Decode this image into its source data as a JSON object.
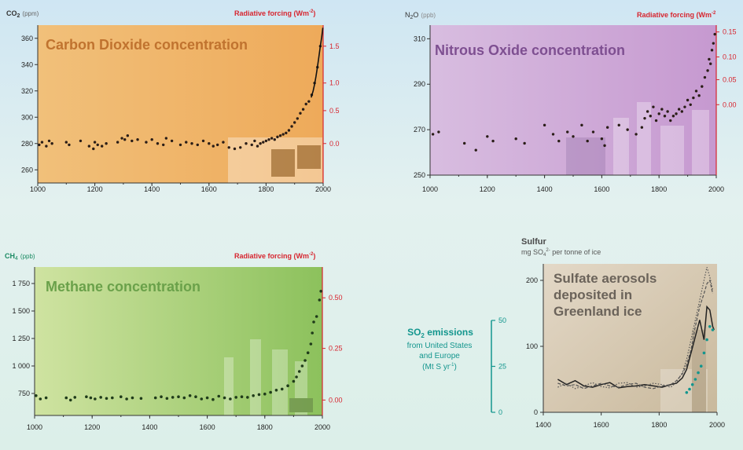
{
  "colors": {
    "co2_bg_start": "#f1c07a",
    "co2_bg_end": "#eeaa5a",
    "n2o_bg_start": "#d8bde0",
    "n2o_bg_end": "#c699d0",
    "ch4_bg_start": "#cfe3a1",
    "ch4_bg_end": "#8cc15c",
    "sulf_bg_start": "#e3d8c7",
    "sulf_bg_end": "#c9b99c",
    "forcing_axis": "#d7252f",
    "co2_title": "#c0732f",
    "n2o_title": "#7e4f91",
    "ch4_title": "#6aa14a",
    "ch4_label": "#1b8a63",
    "so2": "#13968e",
    "sulf_title": "#6b635a",
    "dots": "#2a1d17",
    "axis_text": "#333333"
  },
  "chart_data": [
    {
      "id": "co2",
      "type": "scatter",
      "title": "Carbon Dioxide concentration",
      "ylabel_main": "CO",
      "ylabel_sub": "2",
      "ylabel_unit": "(ppm)",
      "ylabel_right": "Radiative forcing (Wm",
      "ylabel_right_sup": "-2",
      "ylabel_right_end": ")",
      "xlim": [
        1000,
        2000
      ],
      "ylim": [
        250,
        370
      ],
      "x_ticks": [
        "1000",
        "1200",
        "1400",
        "1600",
        "1800",
        "2000"
      ],
      "y_ticks": [
        "260",
        "280",
        "300",
        "320",
        "340",
        "360"
      ],
      "right_ticks": [
        "1.5",
        "1.0",
        "0.5",
        "0.0"
      ],
      "right_tick_values": [
        354,
        326,
        305,
        280
      ],
      "points": [
        [
          1005,
          279
        ],
        [
          1015,
          281
        ],
        [
          1030,
          278
        ],
        [
          1040,
          282
        ],
        [
          1050,
          280
        ],
        [
          1100,
          281
        ],
        [
          1110,
          279
        ],
        [
          1150,
          282
        ],
        [
          1180,
          278
        ],
        [
          1195,
          276
        ],
        [
          1200,
          281
        ],
        [
          1210,
          279
        ],
        [
          1225,
          278
        ],
        [
          1240,
          280
        ],
        [
          1280,
          281
        ],
        [
          1295,
          284
        ],
        [
          1305,
          283
        ],
        [
          1315,
          286
        ],
        [
          1330,
          282
        ],
        [
          1350,
          283
        ],
        [
          1380,
          281
        ],
        [
          1400,
          283
        ],
        [
          1420,
          280
        ],
        [
          1440,
          279
        ],
        [
          1450,
          284
        ],
        [
          1470,
          282
        ],
        [
          1500,
          279
        ],
        [
          1520,
          281
        ],
        [
          1540,
          280
        ],
        [
          1560,
          279
        ],
        [
          1580,
          282
        ],
        [
          1600,
          280
        ],
        [
          1615,
          278
        ],
        [
          1630,
          279
        ],
        [
          1650,
          281
        ],
        [
          1670,
          277
        ],
        [
          1690,
          276
        ],
        [
          1710,
          277
        ],
        [
          1730,
          280
        ],
        [
          1750,
          279
        ],
        [
          1760,
          282
        ],
        [
          1770,
          278
        ],
        [
          1780,
          280
        ],
        [
          1790,
          281
        ],
        [
          1800,
          282
        ],
        [
          1810,
          283
        ],
        [
          1820,
          284
        ],
        [
          1830,
          283
        ],
        [
          1840,
          285
        ],
        [
          1850,
          286
        ],
        [
          1860,
          287
        ],
        [
          1870,
          288
        ],
        [
          1880,
          290
        ],
        [
          1890,
          293
        ],
        [
          1900,
          296
        ],
        [
          1910,
          299
        ],
        [
          1920,
          303
        ],
        [
          1930,
          306
        ],
        [
          1940,
          310
        ],
        [
          1950,
          312
        ],
        [
          1960,
          317
        ],
        [
          1970,
          326
        ],
        [
          1980,
          338
        ],
        [
          1990,
          354
        ]
      ],
      "line": [
        [
          1958,
          315
        ],
        [
          1965,
          320
        ],
        [
          1970,
          325
        ],
        [
          1975,
          331
        ],
        [
          1980,
          338
        ],
        [
          1985,
          346
        ],
        [
          1990,
          354
        ],
        [
          1995,
          361
        ],
        [
          1999,
          368
        ]
      ]
    },
    {
      "id": "n2o",
      "type": "scatter",
      "title": "Nitrous Oxide concentration",
      "ylabel_main": "N",
      "ylabel_sub": "2",
      "ylabel_main2": "O",
      "ylabel_unit": "(ppb)",
      "ylabel_right": "Radiative forcing (Wm",
      "ylabel_right_sup": "-2",
      "xlim": [
        1000,
        2000
      ],
      "ylim": [
        250,
        316
      ],
      "x_ticks": [
        "1000",
        "1200",
        "1400",
        "1600",
        "1800",
        "2000"
      ],
      "y_ticks": [
        "250",
        "270",
        "290",
        "310"
      ],
      "right_ticks": [
        "0.15",
        "0.10",
        "0.05",
        "0.00"
      ],
      "right_tick_values": [
        313,
        302,
        292,
        281
      ],
      "points": [
        [
          1010,
          268
        ],
        [
          1030,
          269
        ],
        [
          1120,
          264
        ],
        [
          1160,
          261
        ],
        [
          1200,
          267
        ],
        [
          1220,
          265
        ],
        [
          1300,
          266
        ],
        [
          1330,
          264
        ],
        [
          1400,
          272
        ],
        [
          1430,
          268
        ],
        [
          1450,
          265
        ],
        [
          1480,
          269
        ],
        [
          1500,
          267
        ],
        [
          1530,
          272
        ],
        [
          1550,
          265
        ],
        [
          1570,
          269
        ],
        [
          1600,
          266
        ],
        [
          1610,
          263
        ],
        [
          1620,
          271
        ],
        [
          1660,
          272
        ],
        [
          1690,
          270
        ],
        [
          1720,
          268
        ],
        [
          1740,
          271
        ],
        [
          1750,
          275
        ],
        [
          1760,
          278
        ],
        [
          1770,
          276
        ],
        [
          1780,
          280
        ],
        [
          1790,
          274
        ],
        [
          1800,
          277
        ],
        [
          1810,
          279
        ],
        [
          1820,
          276
        ],
        [
          1830,
          278
        ],
        [
          1840,
          274
        ],
        [
          1850,
          276
        ],
        [
          1860,
          277
        ],
        [
          1870,
          279
        ],
        [
          1880,
          278
        ],
        [
          1890,
          280
        ],
        [
          1900,
          283
        ],
        [
          1910,
          281
        ],
        [
          1920,
          284
        ],
        [
          1930,
          287
        ],
        [
          1940,
          285
        ],
        [
          1950,
          289
        ],
        [
          1960,
          293
        ],
        [
          1970,
          296
        ],
        [
          1975,
          301
        ],
        [
          1980,
          299
        ],
        [
          1985,
          305
        ],
        [
          1990,
          308
        ],
        [
          1995,
          312
        ]
      ]
    },
    {
      "id": "ch4",
      "type": "scatter",
      "title": "Methane concentration",
      "ylabel_main": "CH",
      "ylabel_sub": "4",
      "ylabel_unit": "(ppb)",
      "ylabel_right": "Radiative forcing (Wm",
      "ylabel_right_sup": "-2",
      "ylabel_right_end": ")",
      "xlim": [
        1000,
        2000
      ],
      "ylim": [
        550,
        1900
      ],
      "x_ticks": [
        "1000",
        "1200",
        "1400",
        "1600",
        "1800",
        "2000"
      ],
      "y_ticks": [
        "750",
        "1 000",
        "1 250",
        "1 500",
        "1 750"
      ],
      "y_tick_values": [
        750,
        1000,
        1250,
        1500,
        1750
      ],
      "right_ticks": [
        "0.50",
        "0.25",
        "0.00"
      ],
      "right_tick_values": [
        1620,
        1160,
        690
      ],
      "points": [
        [
          1005,
          730
        ],
        [
          1020,
          700
        ],
        [
          1040,
          710
        ],
        [
          1110,
          710
        ],
        [
          1125,
          690
        ],
        [
          1140,
          715
        ],
        [
          1180,
          720
        ],
        [
          1195,
          710
        ],
        [
          1210,
          700
        ],
        [
          1230,
          715
        ],
        [
          1250,
          705
        ],
        [
          1270,
          710
        ],
        [
          1300,
          720
        ],
        [
          1320,
          700
        ],
        [
          1340,
          710
        ],
        [
          1370,
          705
        ],
        [
          1420,
          710
        ],
        [
          1440,
          720
        ],
        [
          1460,
          705
        ],
        [
          1480,
          715
        ],
        [
          1500,
          720
        ],
        [
          1520,
          710
        ],
        [
          1540,
          730
        ],
        [
          1560,
          720
        ],
        [
          1580,
          700
        ],
        [
          1600,
          710
        ],
        [
          1620,
          695
        ],
        [
          1640,
          725
        ],
        [
          1660,
          710
        ],
        [
          1680,
          700
        ],
        [
          1700,
          715
        ],
        [
          1720,
          720
        ],
        [
          1740,
          715
        ],
        [
          1760,
          730
        ],
        [
          1780,
          740
        ],
        [
          1800,
          745
        ],
        [
          1820,
          760
        ],
        [
          1840,
          780
        ],
        [
          1860,
          790
        ],
        [
          1880,
          820
        ],
        [
          1900,
          860
        ],
        [
          1910,
          900
        ],
        [
          1920,
          950
        ],
        [
          1930,
          1000
        ],
        [
          1940,
          1050
        ],
        [
          1950,
          1120
        ],
        [
          1960,
          1200
        ],
        [
          1965,
          1300
        ],
        [
          1970,
          1400
        ],
        [
          1980,
          1450
        ],
        [
          1990,
          1600
        ],
        [
          1995,
          1680
        ]
      ]
    },
    {
      "id": "sulfate",
      "type": "line",
      "title_lines": [
        "Sulfate aerosols",
        "deposited in",
        "Greenland ice"
      ],
      "top_label": "Sulfur",
      "top_unit_pre": "mg SO",
      "top_unit_sub": "4",
      "top_unit_sup": "2-",
      "top_unit_post": " per tonne of ice",
      "xlim": [
        1400,
        2000
      ],
      "ylim": [
        0,
        225
      ],
      "x_ticks": [
        "1400",
        "1600",
        "1800",
        "2000"
      ],
      "y_ticks": [
        "0",
        "100",
        "200"
      ],
      "so2_label": [
        "SO",
        "2",
        " emissions"
      ],
      "so2_text": [
        "from United States",
        "and Europe",
        "(Mt S yr",
        "-1",
        ")"
      ],
      "so2_ticks": [
        "0",
        "25",
        "50"
      ],
      "series": [
        {
          "style": "solid",
          "points": [
            [
              1450,
              50
            ],
            [
              1480,
              42
            ],
            [
              1510,
              48
            ],
            [
              1540,
              40
            ],
            [
              1570,
              38
            ],
            [
              1600,
              42
            ],
            [
              1630,
              45
            ],
            [
              1660,
              37
            ],
            [
              1690,
              39
            ],
            [
              1720,
              40
            ],
            [
              1750,
              42
            ],
            [
              1780,
              40
            ],
            [
              1810,
              38
            ],
            [
              1840,
              42
            ],
            [
              1860,
              44
            ],
            [
              1880,
              52
            ],
            [
              1895,
              65
            ],
            [
              1910,
              90
            ],
            [
              1925,
              115
            ],
            [
              1940,
              140
            ],
            [
              1955,
              110
            ],
            [
              1965,
              160
            ],
            [
              1975,
              155
            ],
            [
              1985,
              130
            ],
            [
              1990,
              125
            ]
          ]
        },
        {
          "style": "dotted",
          "points": [
            [
              1450,
              38
            ],
            [
              1480,
              44
            ],
            [
              1510,
              36
            ],
            [
              1540,
              40
            ],
            [
              1570,
              45
            ],
            [
              1600,
              39
            ],
            [
              1630,
              37
            ],
            [
              1660,
              44
            ],
            [
              1690,
              45
            ],
            [
              1720,
              38
            ],
            [
              1750,
              40
            ],
            [
              1780,
              44
            ],
            [
              1810,
              42
            ],
            [
              1840,
              38
            ],
            [
              1860,
              46
            ],
            [
              1880,
              60
            ],
            [
              1895,
              80
            ],
            [
              1910,
              110
            ],
            [
              1925,
              140
            ],
            [
              1940,
              170
            ],
            [
              1955,
              200
            ],
            [
              1965,
              220
            ],
            [
              1975,
              205
            ],
            [
              1985,
              185
            ]
          ]
        },
        {
          "style": "dash",
          "points": [
            [
              1450,
              44
            ],
            [
              1480,
              40
            ],
            [
              1510,
              42
            ],
            [
              1540,
              36
            ],
            [
              1570,
              40
            ],
            [
              1600,
              44
            ],
            [
              1630,
              40
            ],
            [
              1660,
              38
            ],
            [
              1690,
              42
            ],
            [
              1720,
              44
            ],
            [
              1750,
              38
            ],
            [
              1780,
              36
            ],
            [
              1810,
              40
            ],
            [
              1840,
              42
            ],
            [
              1860,
              48
            ],
            [
              1880,
              58
            ],
            [
              1895,
              72
            ],
            [
              1910,
              95
            ],
            [
              1925,
              130
            ],
            [
              1940,
              160
            ],
            [
              1955,
              180
            ],
            [
              1965,
              195
            ],
            [
              1975,
              200
            ],
            [
              1985,
              180
            ]
          ]
        }
      ],
      "so2_points": [
        [
          1895,
          30
        ],
        [
          1905,
          35
        ],
        [
          1915,
          42
        ],
        [
          1925,
          50
        ],
        [
          1935,
          60
        ],
        [
          1945,
          70
        ],
        [
          1955,
          90
        ],
        [
          1965,
          110
        ],
        [
          1975,
          130
        ],
        [
          1985,
          125
        ]
      ]
    }
  ]
}
